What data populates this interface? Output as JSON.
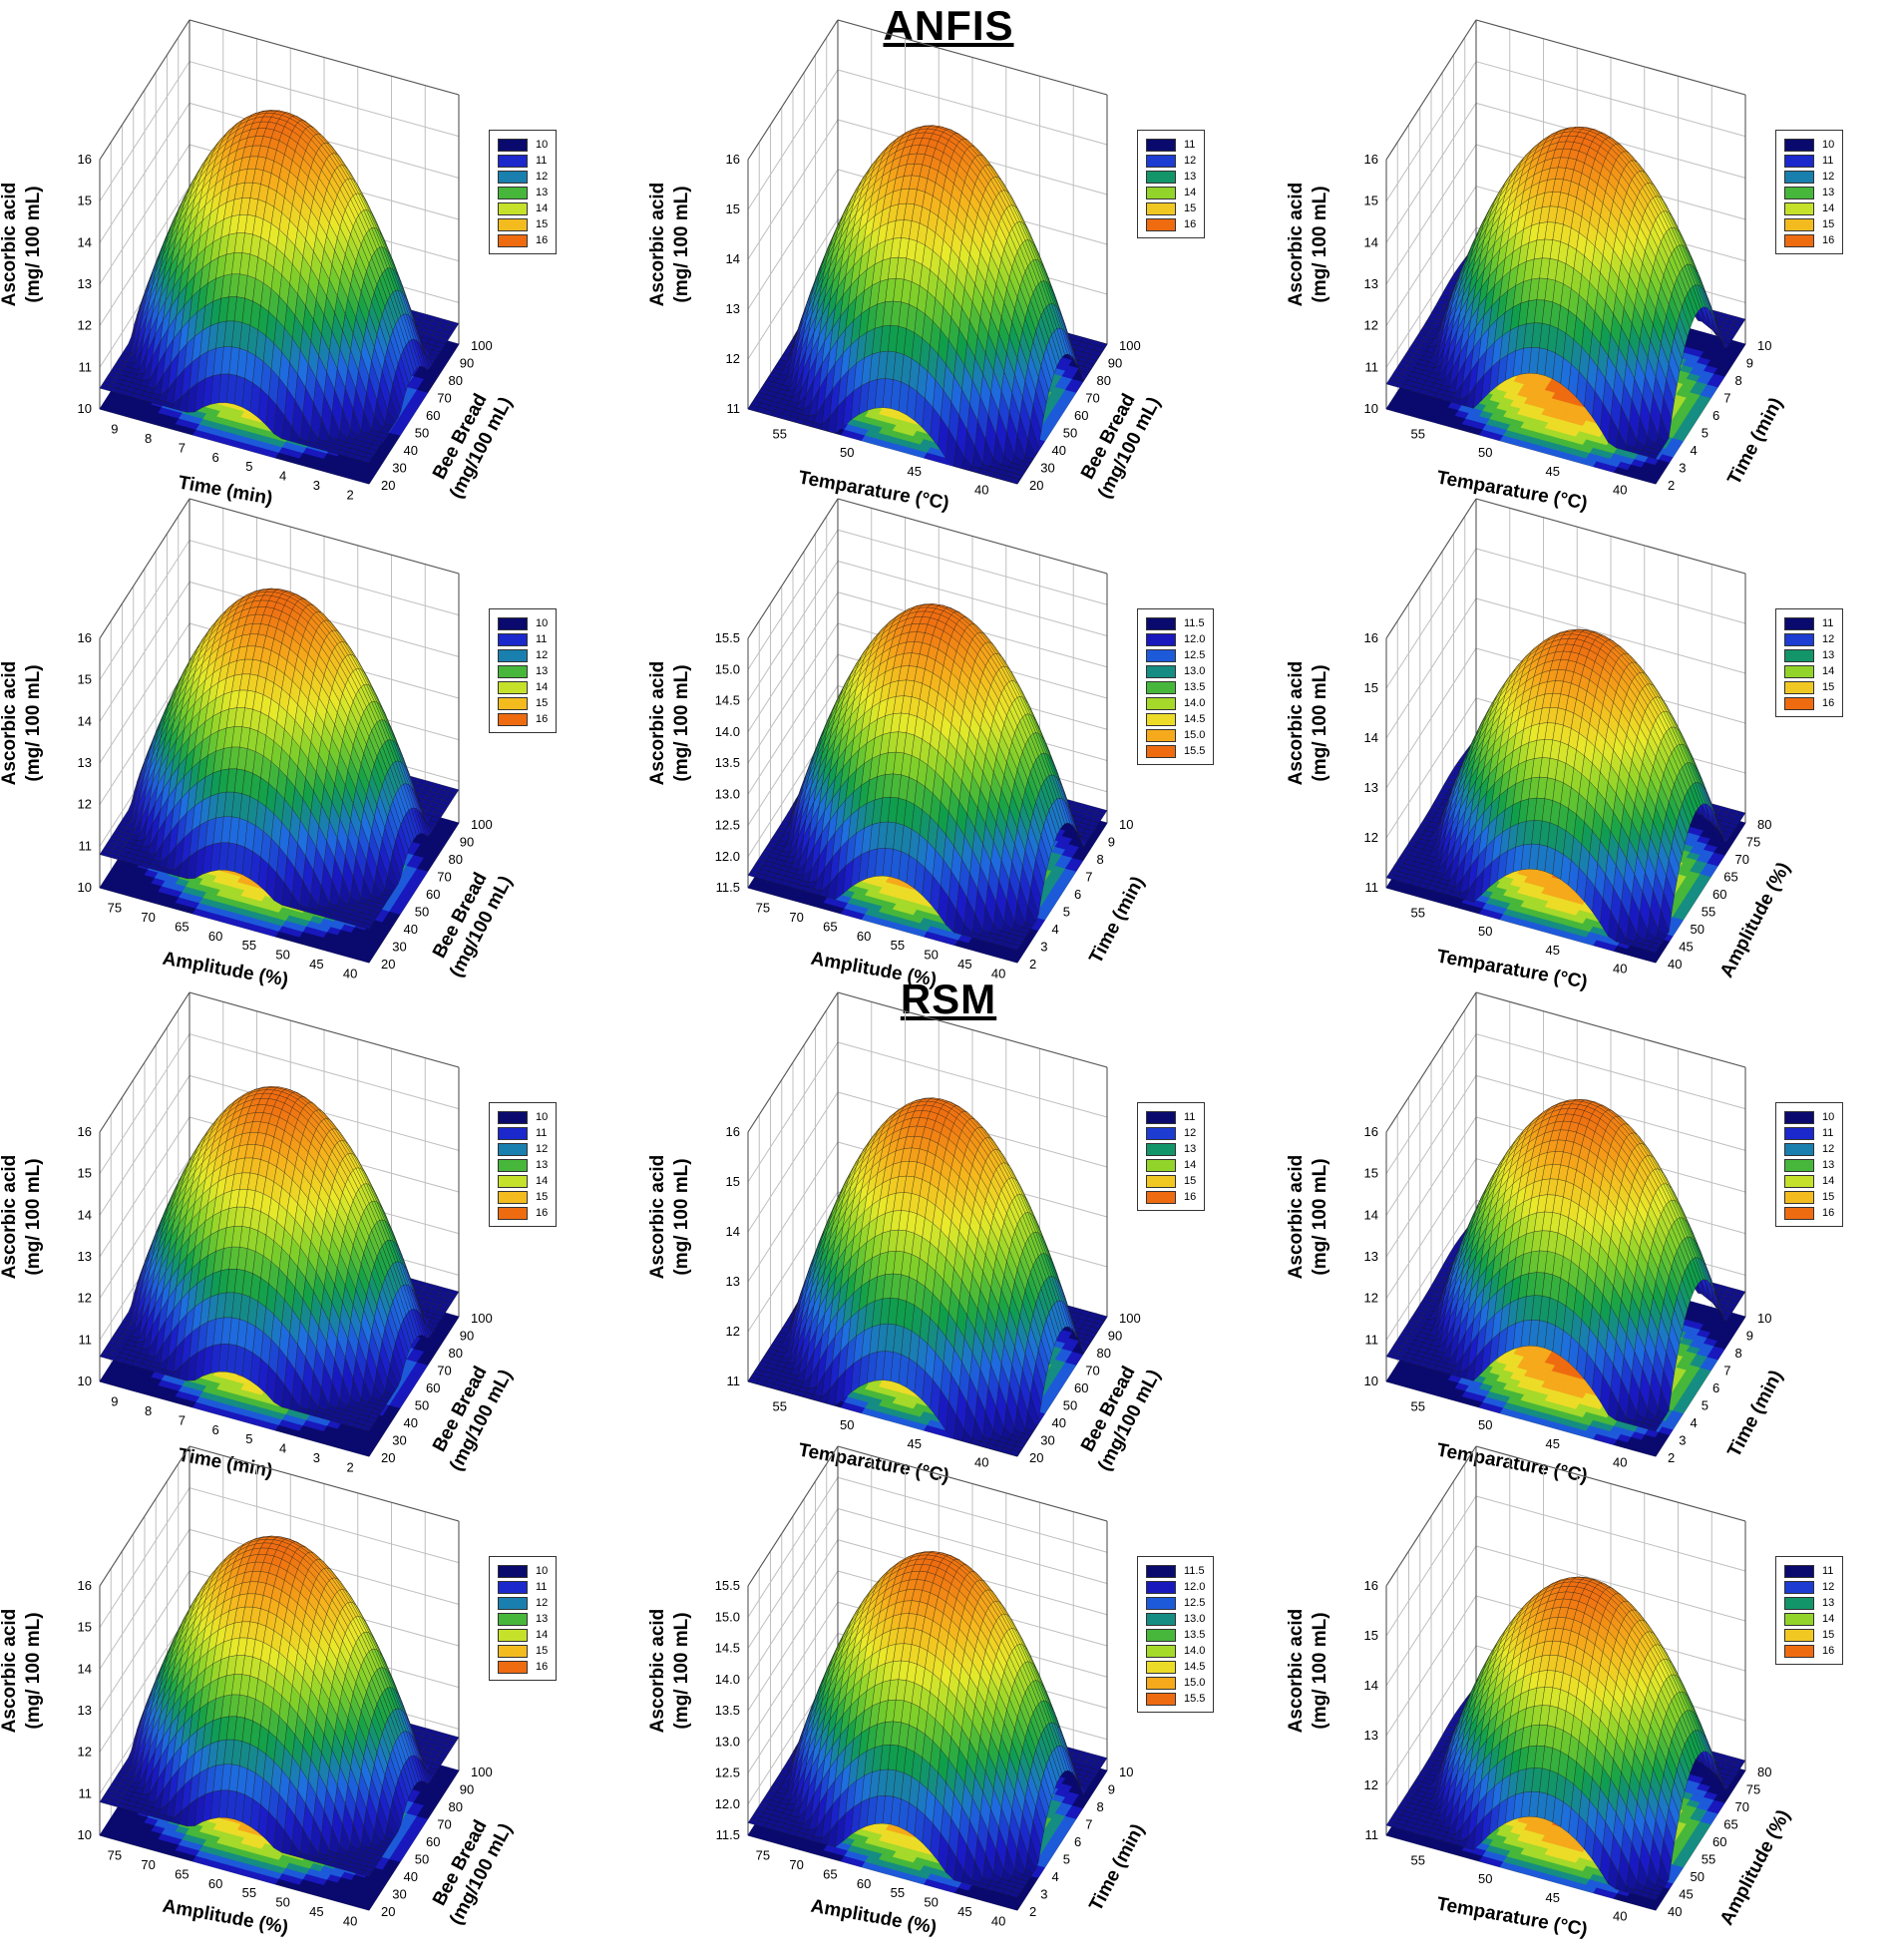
{
  "sections": {
    "anfis": "ANFIS",
    "rsm": "RSM"
  },
  "colors": {
    "levels": [
      "#0a0a6e",
      "#1a1ac8",
      "#1e6fe0",
      "#0f9f4a",
      "#7ccf2a",
      "#e9ea2a",
      "#f6b21c",
      "#ef6b10"
    ],
    "grid": "#bfbfbf",
    "mesh": "#1a1a1a"
  },
  "chart_data": [
    {
      "id": "anfis-1",
      "type": "surface",
      "section": "ANFIS",
      "zlabel": [
        "Ascorbic acid",
        "(mg/ 100 mL)"
      ],
      "zticks": [
        "10",
        "11",
        "12",
        "13",
        "14",
        "15",
        "16"
      ],
      "zlim": [
        10,
        16
      ],
      "xlabel": "Time (min)",
      "xticks": [
        "9",
        "8",
        "7",
        "6",
        "5",
        "4",
        "3",
        "2"
      ],
      "ylabel": [
        "Bee Bread",
        "(mg/100 mL)"
      ],
      "yticks": [
        "20",
        "30",
        "40",
        "50",
        "60",
        "70",
        "80",
        "90",
        "100"
      ],
      "legend": [
        "10",
        "11",
        "12",
        "13",
        "14",
        "15",
        "16"
      ],
      "peak": 16.2,
      "floor": 10.5
    },
    {
      "id": "anfis-2",
      "type": "surface",
      "section": "ANFIS",
      "zlabel": [
        "Ascorbic acid",
        "(mg/ 100 mL)"
      ],
      "zticks": [
        "11",
        "12",
        "13",
        "14",
        "15",
        "16"
      ],
      "zlim": [
        11,
        16
      ],
      "xlabel": "Temparature (°C)",
      "xticks": [
        "55",
        "50",
        "45",
        "40"
      ],
      "ylabel": [
        "Bee Bread",
        "(mg/100 mL)"
      ],
      "yticks": [
        "20",
        "30",
        "40",
        "50",
        "60",
        "70",
        "80",
        "90",
        "100"
      ],
      "legend": [
        "11",
        "12",
        "13",
        "14",
        "15",
        "16"
      ],
      "peak": 16.0,
      "floor": 11.0
    },
    {
      "id": "anfis-3",
      "type": "surface",
      "section": "ANFIS",
      "zlabel": [
        "Ascorbic acid",
        "(mg/ 100 mL)"
      ],
      "zticks": [
        "10",
        "11",
        "12",
        "13",
        "14",
        "15",
        "16"
      ],
      "zlim": [
        10,
        16
      ],
      "xlabel": "Temparature (°C)",
      "xticks": [
        "55",
        "50",
        "45",
        "40"
      ],
      "ylabel": [
        "Time (min)"
      ],
      "yticks": [
        "2",
        "3",
        "4",
        "5",
        "6",
        "7",
        "8",
        "9",
        "10"
      ],
      "legend": [
        "10",
        "11",
        "12",
        "13",
        "14",
        "15",
        "16"
      ],
      "peak": 16.1,
      "floor": 10.6
    },
    {
      "id": "anfis-4",
      "type": "surface",
      "section": "ANFIS",
      "zlabel": [
        "Ascorbic acid",
        "(mg/ 100 mL)"
      ],
      "zticks": [
        "10",
        "11",
        "12",
        "13",
        "14",
        "15",
        "16"
      ],
      "zlim": [
        10,
        16
      ],
      "xlabel": "Amplitude (%)",
      "xticks": [
        "75",
        "70",
        "65",
        "60",
        "55",
        "50",
        "45",
        "40"
      ],
      "ylabel": [
        "Bee Bread",
        "(mg/100 mL)"
      ],
      "yticks": [
        "20",
        "30",
        "40",
        "50",
        "60",
        "70",
        "80",
        "90",
        "100"
      ],
      "legend": [
        "10",
        "11",
        "12",
        "13",
        "14",
        "15",
        "16"
      ],
      "peak": 16.2,
      "floor": 10.8
    },
    {
      "id": "anfis-5",
      "type": "surface",
      "section": "ANFIS",
      "zlabel": [
        "Ascorbic acid",
        "(mg/ 100 mL)"
      ],
      "zticks": [
        "11.5",
        "12.0",
        "12.5",
        "13.0",
        "13.5",
        "14.0",
        "14.5",
        "15.0",
        "15.5"
      ],
      "zlim": [
        11.5,
        15.5
      ],
      "xlabel": "Amplitude (%)",
      "xticks": [
        "75",
        "70",
        "65",
        "60",
        "55",
        "50",
        "45",
        "40"
      ],
      "ylabel": [
        "Time (min)"
      ],
      "yticks": [
        "2",
        "3",
        "4",
        "5",
        "6",
        "7",
        "8",
        "9",
        "10"
      ],
      "legend": [
        "11.5",
        "12.0",
        "12.5",
        "13.0",
        "13.5",
        "14.0",
        "14.5",
        "15.0",
        "15.5"
      ],
      "peak": 15.5,
      "floor": 11.7
    },
    {
      "id": "anfis-6",
      "type": "surface",
      "section": "ANFIS",
      "zlabel": [
        "Ascorbic acid",
        "(mg/ 100 mL)"
      ],
      "zticks": [
        "11",
        "12",
        "13",
        "14",
        "15",
        "16"
      ],
      "zlim": [
        11,
        16
      ],
      "xlabel": "Temparature (°C)",
      "xticks": [
        "55",
        "50",
        "45",
        "40"
      ],
      "ylabel": [
        "Amplitude (%)"
      ],
      "yticks": [
        "40",
        "45",
        "50",
        "55",
        "60",
        "65",
        "70",
        "75",
        "80"
      ],
      "legend": [
        "11",
        "12",
        "13",
        "14",
        "15",
        "16"
      ],
      "peak": 15.6,
      "floor": 11.2
    },
    {
      "id": "rsm-1",
      "type": "surface",
      "section": "RSM",
      "zlabel": [
        "Ascorbic acid",
        "(mg/ 100 mL)"
      ],
      "zticks": [
        "10",
        "11",
        "12",
        "13",
        "14",
        "15",
        "16"
      ],
      "zlim": [
        10,
        16
      ],
      "xlabel": "Time (min)",
      "xticks": [
        "9",
        "8",
        "7",
        "6",
        "5",
        "4",
        "3",
        "2"
      ],
      "ylabel": [
        "Bee Bread",
        "(mg/100 mL)"
      ],
      "yticks": [
        "20",
        "30",
        "40",
        "50",
        "60",
        "70",
        "80",
        "90",
        "100"
      ],
      "legend": [
        "10",
        "11",
        "12",
        "13",
        "14",
        "15",
        "16"
      ],
      "peak": 16.1,
      "floor": 10.6
    },
    {
      "id": "rsm-2",
      "type": "surface",
      "section": "RSM",
      "zlabel": [
        "Ascorbic acid",
        "(mg/ 100 mL)"
      ],
      "zticks": [
        "11",
        "12",
        "13",
        "14",
        "15",
        "16"
      ],
      "zlim": [
        11,
        16
      ],
      "xlabel": "Temparature (°C)",
      "xticks": [
        "55",
        "50",
        "45",
        "40"
      ],
      "ylabel": [
        "Bee Bread",
        "(mg/100 mL)"
      ],
      "yticks": [
        "20",
        "30",
        "40",
        "50",
        "60",
        "70",
        "80",
        "90",
        "100"
      ],
      "legend": [
        "11",
        "12",
        "13",
        "14",
        "15",
        "16"
      ],
      "peak": 16.0,
      "floor": 11.0
    },
    {
      "id": "rsm-3",
      "type": "surface",
      "section": "RSM",
      "zlabel": [
        "Ascorbic acid",
        "(mg/ 100 mL)"
      ],
      "zticks": [
        "10",
        "11",
        "12",
        "13",
        "14",
        "15",
        "16"
      ],
      "zlim": [
        10,
        16
      ],
      "xlabel": "Temparature (°C)",
      "xticks": [
        "55",
        "50",
        "45",
        "40"
      ],
      "ylabel": [
        "Time (min)"
      ],
      "yticks": [
        "2",
        "3",
        "4",
        "5",
        "6",
        "7",
        "8",
        "9",
        "10"
      ],
      "legend": [
        "10",
        "11",
        "12",
        "13",
        "14",
        "15",
        "16"
      ],
      "peak": 16.1,
      "floor": 10.6
    },
    {
      "id": "rsm-4",
      "type": "surface",
      "section": "RSM",
      "zlabel": [
        "Ascorbic acid",
        "(mg/ 100 mL)"
      ],
      "zticks": [
        "10",
        "11",
        "12",
        "13",
        "14",
        "15",
        "16"
      ],
      "zlim": [
        10,
        16
      ],
      "xlabel": "Amplitude (%)",
      "xticks": [
        "75",
        "70",
        "65",
        "60",
        "55",
        "50",
        "45",
        "40"
      ],
      "ylabel": [
        "Bee Bread",
        "(mg/100 mL)"
      ],
      "yticks": [
        "20",
        "30",
        "40",
        "50",
        "60",
        "70",
        "80",
        "90",
        "100"
      ],
      "legend": [
        "10",
        "11",
        "12",
        "13",
        "14",
        "15",
        "16"
      ],
      "peak": 16.2,
      "floor": 10.8
    },
    {
      "id": "rsm-5",
      "type": "surface",
      "section": "RSM",
      "zlabel": [
        "Ascorbic acid",
        "(mg/ 100 mL)"
      ],
      "zticks": [
        "11.5",
        "12.0",
        "12.5",
        "13.0",
        "13.5",
        "14.0",
        "14.5",
        "15.0",
        "15.5"
      ],
      "zlim": [
        11.5,
        15.5
      ],
      "xlabel": "Amplitude (%)",
      "xticks": [
        "75",
        "70",
        "65",
        "60",
        "55",
        "50",
        "45",
        "40"
      ],
      "ylabel": [
        "Time (min)"
      ],
      "yticks": [
        "2",
        "3",
        "4",
        "5",
        "6",
        "7",
        "8",
        "9",
        "10"
      ],
      "legend": [
        "11.5",
        "12.0",
        "12.5",
        "13.0",
        "13.5",
        "14.0",
        "14.5",
        "15.0",
        "15.5"
      ],
      "peak": 15.5,
      "floor": 11.7
    },
    {
      "id": "rsm-6",
      "type": "surface",
      "section": "RSM",
      "zlabel": [
        "Ascorbic acid",
        "(mg/ 100 mL)"
      ],
      "zticks": [
        "11",
        "12",
        "13",
        "14",
        "15",
        "16"
      ],
      "zlim": [
        11,
        16
      ],
      "xlabel": "Temparature (°C)",
      "xticks": [
        "55",
        "50",
        "45",
        "40"
      ],
      "ylabel": [
        "Amplitude (%)"
      ],
      "yticks": [
        "40",
        "45",
        "50",
        "55",
        "60",
        "65",
        "70",
        "75",
        "80"
      ],
      "legend": [
        "11",
        "12",
        "13",
        "14",
        "15",
        "16"
      ],
      "peak": 15.6,
      "floor": 11.2
    }
  ]
}
